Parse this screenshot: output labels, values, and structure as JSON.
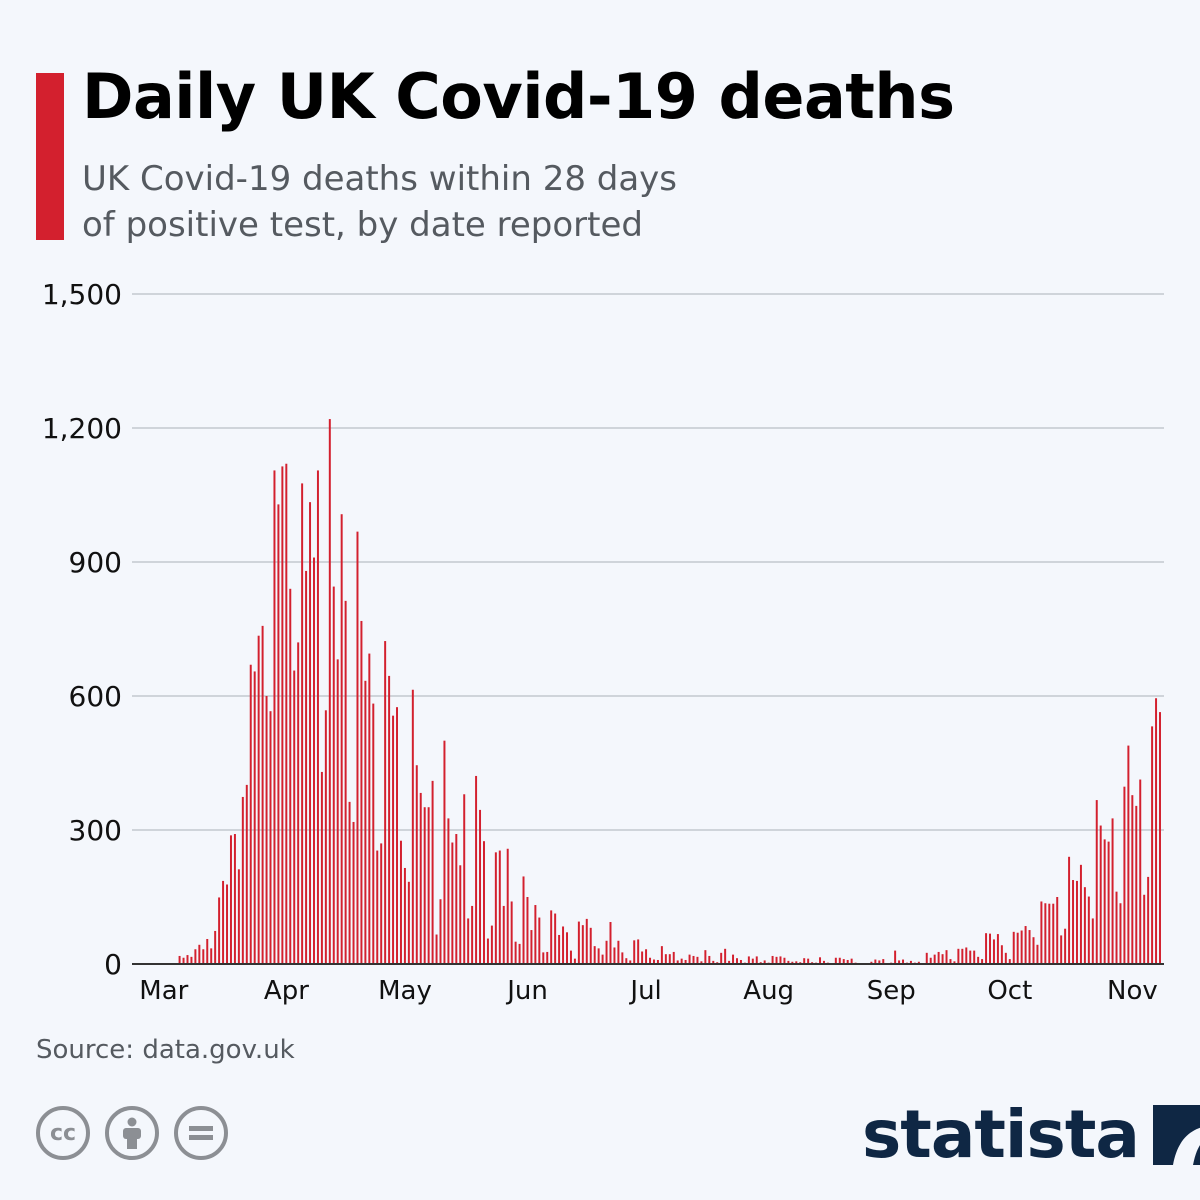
{
  "header": {
    "title": "Daily UK Covid-19 deaths",
    "subtitle_line1": "UK Covid-19 deaths within 28 days",
    "subtitle_line2": "of positive test, by date reported"
  },
  "footer": {
    "source": "Source: data.gov.uk",
    "license_icons": [
      "cc-icon",
      "attribution-icon",
      "no-derivatives-icon"
    ],
    "brand": "statista"
  },
  "colors": {
    "accent": "#d3202e",
    "bar": "#d3202e",
    "grid": "#b9bec6",
    "brand": "#0f2744"
  },
  "chart_data": {
    "type": "bar",
    "title": "Daily UK Covid-19 deaths",
    "subtitle": "UK Covid-19 deaths within 28 days of positive test, by date reported",
    "xlabel": "",
    "ylabel": "",
    "ylim": [
      0,
      1500
    ],
    "yticks": [
      0,
      300,
      600,
      900,
      1200,
      1500
    ],
    "ytick_labels": [
      "0",
      "300",
      "600",
      "900",
      "1,200",
      "1,500"
    ],
    "x_start": "2020-02-26",
    "month_labels": [
      {
        "label": "Mar",
        "date": "2020-03-01"
      },
      {
        "label": "Apr",
        "date": "2020-04-01"
      },
      {
        "label": "May",
        "date": "2020-05-01"
      },
      {
        "label": "Jun",
        "date": "2020-06-01"
      },
      {
        "label": "Jul",
        "date": "2020-07-01"
      },
      {
        "label": "Aug",
        "date": "2020-08-01"
      },
      {
        "label": "Sep",
        "date": "2020-09-01"
      },
      {
        "label": "Oct",
        "date": "2020-10-01"
      },
      {
        "label": "Nov",
        "date": "2020-11-01"
      }
    ],
    "grid": true,
    "legend": "none",
    "values": [
      0,
      0,
      0,
      0,
      0,
      0,
      0,
      0,
      0,
      18,
      14,
      20,
      16,
      33,
      43,
      33,
      56,
      35,
      74,
      149,
      186,
      178,
      288,
      291,
      212,
      374,
      401,
      670,
      655,
      735,
      757,
      600,
      566,
      1105,
      1029,
      1114,
      1120,
      840,
      657,
      720,
      1076,
      880,
      1034,
      910,
      1105,
      430,
      568,
      1220,
      845,
      682,
      1007,
      813,
      363,
      318,
      968,
      768,
      634,
      695,
      583,
      254,
      270,
      723,
      645,
      556,
      575,
      276,
      215,
      184,
      614,
      445,
      383,
      351,
      351,
      410,
      66,
      145,
      500,
      326,
      272,
      291,
      221,
      380,
      102,
      130,
      421,
      345,
      275,
      57,
      86,
      250,
      254,
      130,
      258,
      140,
      50,
      45,
      196,
      150,
      76,
      132,
      104,
      26,
      27,
      120,
      113,
      65,
      84,
      71,
      30,
      12,
      95,
      87,
      101,
      81,
      40,
      35,
      21,
      52,
      94,
      37,
      52,
      26,
      13,
      8,
      53,
      55,
      28,
      33,
      14,
      10,
      9,
      40,
      22,
      22,
      27,
      8,
      12,
      9,
      21,
      18,
      16,
      6,
      31,
      18,
      7,
      4,
      25,
      34,
      7,
      21,
      13,
      9,
      3,
      17,
      12,
      17,
      4,
      8,
      3,
      18,
      16,
      17,
      14,
      7,
      5,
      6,
      4,
      13,
      12,
      4,
      3,
      15,
      7,
      3,
      1,
      14,
      14,
      11,
      9,
      12,
      3,
      0,
      0,
      0,
      5,
      10,
      8,
      11,
      0,
      3,
      30,
      8,
      10,
      3,
      7,
      3,
      5,
      2,
      25,
      14,
      21,
      27,
      22,
      31,
      11,
      6,
      34,
      34,
      37,
      30,
      30,
      16,
      11,
      69,
      68,
      55,
      67,
      42,
      25,
      11,
      72,
      70,
      75,
      85,
      76,
      60,
      43,
      140,
      136,
      135,
      135,
      150,
      64,
      79,
      240,
      188,
      186,
      222,
      172,
      151,
      102,
      367,
      310,
      279,
      274,
      326,
      162,
      136,
      397,
      489,
      378,
      354,
      413,
      155,
      195,
      532,
      595,
      564
    ]
  }
}
